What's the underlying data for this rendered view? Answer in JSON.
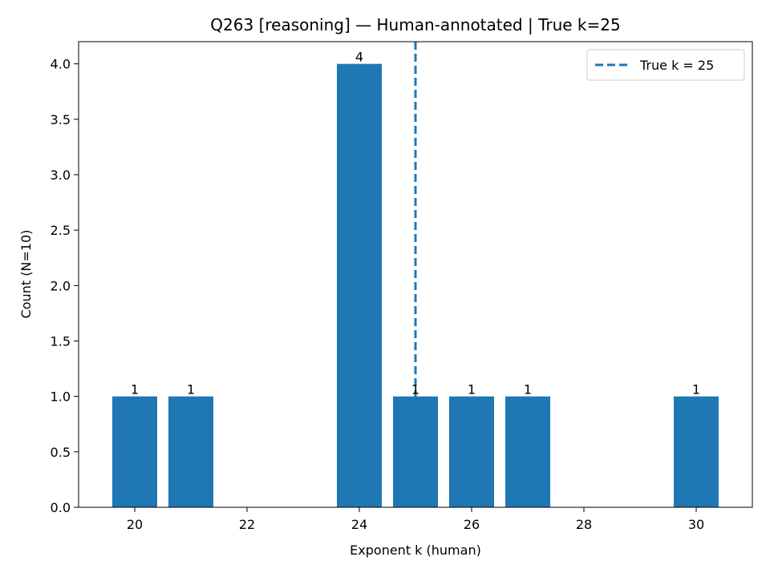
{
  "chart_data": {
    "type": "bar",
    "title": "Q263 [reasoning] — Human-annotated | True k=25",
    "xlabel": "Exponent k (human)",
    "ylabel": "Count (N=10)",
    "x": [
      20,
      21,
      24,
      25,
      26,
      27,
      30
    ],
    "values": [
      1,
      1,
      4,
      1,
      1,
      1,
      1
    ],
    "bar_width": 0.8,
    "xlim": [
      19,
      31
    ],
    "ylim": [
      0,
      4.2
    ],
    "xticks": [
      20,
      22,
      24,
      26,
      28,
      30
    ],
    "yticks": [
      0.0,
      0.5,
      1.0,
      1.5,
      2.0,
      2.5,
      3.0,
      3.5,
      4.0
    ],
    "bar_color": "#1f77b4",
    "reference_line": {
      "x": 25,
      "style": "dashed",
      "color": "#1f77b4",
      "label": "True k = 25"
    },
    "legend": {
      "position": "top-right",
      "entries": [
        "True k = 25"
      ]
    },
    "grid": false
  }
}
